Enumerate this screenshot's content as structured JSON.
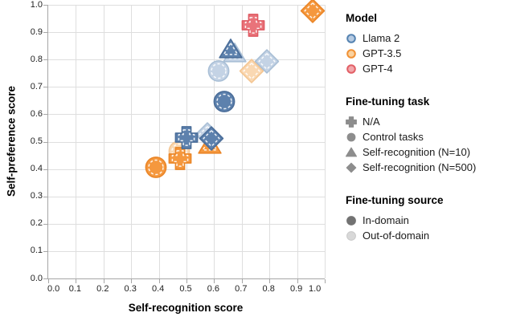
{
  "chart_data": {
    "type": "scatter",
    "xlabel": "Self-recognition score",
    "ylabel": "Self-preference score",
    "xlim": [
      0.0,
      1.0
    ],
    "ylim": [
      0.0,
      1.0
    ],
    "grid": true,
    "xticks": [
      "0.0",
      "0.1",
      "0.2",
      "0.3",
      "0.4",
      "0.5",
      "0.6",
      "0.7",
      "0.8",
      "0.9",
      "1.0"
    ],
    "yticks": [
      "0.0",
      "0.1",
      "0.2",
      "0.3",
      "0.4",
      "0.5",
      "0.6",
      "0.7",
      "0.8",
      "0.9",
      "1.0"
    ],
    "points": [
      {
        "model": "Llama 2",
        "color_key": "llama2",
        "task": "Self-recognition (N=10)",
        "shape": "triangle",
        "source": "Out-of-domain",
        "shade": "light",
        "x": 0.675,
        "y": 0.815
      },
      {
        "model": "Llama 2",
        "color_key": "llama2",
        "task": "Control tasks",
        "shape": "circle",
        "source": "Out-of-domain",
        "shade": "light",
        "x": 0.615,
        "y": 0.75
      },
      {
        "model": "GPT-3.5",
        "color_key": "gpt35",
        "task": "Self-recognition (N=500)",
        "shape": "diamond",
        "source": "Out-of-domain",
        "shade": "light",
        "x": 0.735,
        "y": 0.75
      },
      {
        "model": "Llama 2",
        "color_key": "llama2",
        "task": "Self-recognition (N=500)",
        "shape": "diamond",
        "source": "Out-of-domain",
        "shade": "light",
        "x": 0.79,
        "y": 0.785
      },
      {
        "model": "GPT-3.5",
        "color_key": "gpt35",
        "task": "Control tasks",
        "shape": "circle",
        "source": "Out-of-domain",
        "shade": "light",
        "x": 0.473,
        "y": 0.458
      },
      {
        "model": "Llama 2",
        "color_key": "llama2",
        "task": "Self-recognition (N=500)",
        "shape": "diamond",
        "source": "Out-of-domain",
        "shade": "light",
        "x": 0.577,
        "y": 0.518
      },
      {
        "model": "GPT-3.5",
        "color_key": "gpt35",
        "task": "Self-recognition (N=10)",
        "shape": "triangle",
        "source": "In-domain",
        "shade": "dark",
        "x": 0.583,
        "y": 0.481
      },
      {
        "model": "Llama 2",
        "color_key": "llama2",
        "task": "Self-recognition (N=500)",
        "shape": "diamond",
        "source": "In-domain",
        "shade": "dark",
        "x": 0.59,
        "y": 0.503
      },
      {
        "model": "GPT-3.5",
        "color_key": "gpt35",
        "task": "Control tasks",
        "shape": "circle",
        "source": "In-domain",
        "shade": "dark",
        "x": 0.39,
        "y": 0.398
      },
      {
        "model": "GPT-3.5",
        "color_key": "gpt35",
        "task": "N/A",
        "shape": "plus",
        "source": "In-domain",
        "shade": "dark",
        "x": 0.477,
        "y": 0.432
      },
      {
        "model": "Llama 2",
        "color_key": "llama2",
        "task": "N/A",
        "shape": "plus",
        "source": "In-domain",
        "shade": "dark",
        "x": 0.5,
        "y": 0.508
      },
      {
        "model": "Llama 2",
        "color_key": "llama2",
        "task": "Self-recognition (N=10)",
        "shape": "triangle",
        "source": "In-domain",
        "shade": "dark",
        "x": 0.66,
        "y": 0.83
      },
      {
        "model": "Llama 2",
        "color_key": "llama2",
        "task": "Control tasks",
        "shape": "circle",
        "source": "In-domain",
        "shade": "dark",
        "x": 0.637,
        "y": 0.64
      },
      {
        "model": "GPT-4",
        "color_key": "gpt4",
        "task": "N/A",
        "shape": "plus",
        "source": "In-domain",
        "shade": "dark",
        "x": 0.74,
        "y": 0.918
      },
      {
        "model": "GPT-3.5",
        "color_key": "gpt35",
        "task": "Self-recognition (N=500)",
        "shape": "diamond",
        "source": "In-domain",
        "shade": "dark",
        "x": 0.957,
        "y": 0.971
      }
    ],
    "legend": {
      "position": "right",
      "groups": [
        {
          "title": "Model",
          "type": "model",
          "items": [
            {
              "label": "Llama 2",
              "icon": "llama2-circle-icon",
              "color_key": "llama2"
            },
            {
              "label": "GPT-3.5",
              "icon": "gpt35-circle-icon",
              "color_key": "gpt35"
            },
            {
              "label": "GPT-4",
              "icon": "gpt4-circle-icon",
              "color_key": "gpt4"
            }
          ]
        },
        {
          "title": "Fine-tuning task",
          "type": "shape",
          "items": [
            {
              "label": "N/A",
              "icon": "plus-icon",
              "shape": "plus"
            },
            {
              "label": "Control tasks",
              "icon": "circle-icon",
              "shape": "circle"
            },
            {
              "label": "Self-recognition (N=10)",
              "icon": "triangle-icon",
              "shape": "triangle"
            },
            {
              "label": "Self-recognition (N=500)",
              "icon": "diamond-icon",
              "shape": "diamond"
            }
          ]
        },
        {
          "title": "Fine-tuning source",
          "type": "shade",
          "items": [
            {
              "label": "In-domain",
              "icon": "dark-circle-icon",
              "shade": "dark"
            },
            {
              "label": "Out-of-domain",
              "icon": "light-circle-icon",
              "shade": "light"
            }
          ]
        }
      ]
    },
    "palette": {
      "llama2": {
        "dark": {
          "fill": "#5d81ad",
          "stroke": "#4a6d99"
        },
        "light": {
          "fill": "#c4d3e5",
          "stroke": "#a9bfd6"
        },
        "legend": {
          "fill": "#b7cbe2",
          "stroke": "#5583b1"
        }
      },
      "gpt35": {
        "dark": {
          "fill": "#f5983e",
          "stroke": "#ea8527"
        },
        "light": {
          "fill": "#fad8b2",
          "stroke": "#f4c693"
        },
        "legend": {
          "fill": "#fad2a0",
          "stroke": "#f19135"
        }
      },
      "gpt4": {
        "dark": {
          "fill": "#e9737a",
          "stroke": "#df5a62"
        },
        "legend": {
          "fill": "#f2a8ac",
          "stroke": "#e25f66"
        }
      },
      "task_icon": "#8d8d8d",
      "source": {
        "dark": "#727272",
        "light": "#d8d8d8",
        "light_stroke": "#c9c9c9"
      },
      "grid": "#dedede",
      "axis_line": "#a6a6a6",
      "tick_label": "#1f1f1f",
      "background": "#ffffff"
    }
  }
}
